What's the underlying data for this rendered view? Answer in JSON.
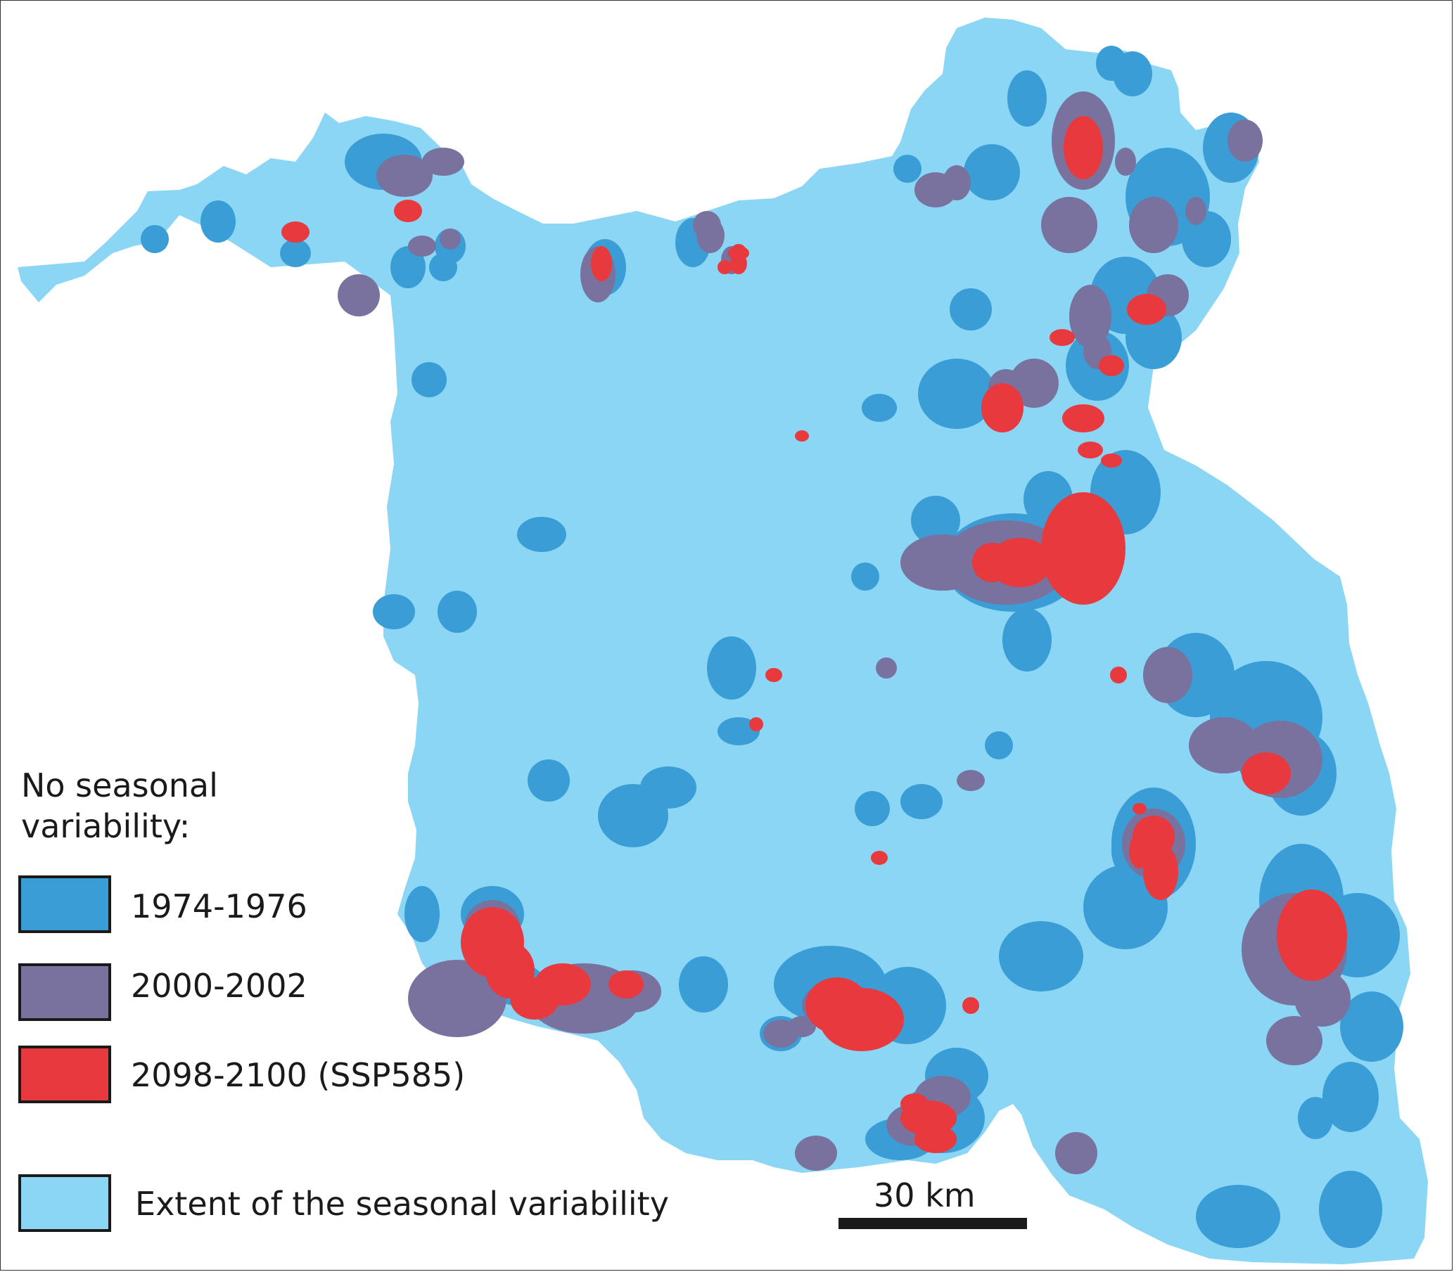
{
  "colors": {
    "extent": "#8ad6f4",
    "period_1974_1976": "#3a9dd6",
    "period_2000_2002": "#79729e",
    "period_2098_2100": "#e8393f",
    "text": "#1a1a1a"
  },
  "legend": {
    "title": "No seasonal\nvariability:",
    "items": [
      {
        "label": "1974-1976",
        "color": "#3a9dd6"
      },
      {
        "label": "2000-2002",
        "color": "#79729e"
      },
      {
        "label": "2098-2100 (SSP585)",
        "color": "#e8393f"
      }
    ],
    "extent": {
      "label": "Extent of the seasonal variability",
      "color": "#8ad6f4"
    }
  },
  "scale_bar": {
    "label": "30 km"
  }
}
